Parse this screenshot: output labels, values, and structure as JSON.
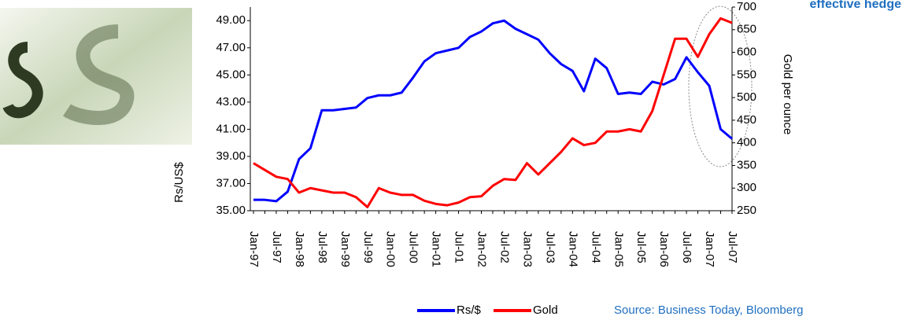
{
  "chart_data": {
    "type": "line",
    "annotation": "effective hedge",
    "ylabel": "Rs/US$",
    "y2label": "Gold per ounce",
    "source": "Source: Business Today, Bloomberg",
    "legend": "bottom",
    "categories": [
      "Jan-97",
      null,
      "Jul-97",
      null,
      "Jan-98",
      null,
      "Jul-98",
      null,
      "Jan-99",
      null,
      "Jul-99",
      null,
      "Jan-00",
      null,
      "Jul-00",
      null,
      "Jan-01",
      null,
      "Jul-01",
      null,
      "Jan-02",
      null,
      "Jul-02",
      null,
      "Jan-03",
      null,
      "Jul-03",
      null,
      "Jan-04",
      null,
      "Jul-04",
      null,
      "Jan-05",
      null,
      "Jul-05",
      null,
      "Jan-06",
      null,
      "Jul-06",
      null,
      "Jan-07",
      null,
      "Jul-07"
    ],
    "series": [
      {
        "name": "Rs/$",
        "color": "#0000ff",
        "values": [
          35.8,
          35.8,
          35.7,
          36.4,
          38.8,
          39.6,
          42.4,
          42.4,
          42.5,
          42.6,
          43.3,
          43.5,
          43.5,
          43.7,
          44.8,
          46.0,
          46.6,
          46.8,
          47.0,
          47.8,
          48.2,
          48.8,
          49.0,
          48.4,
          48.0,
          47.6,
          46.6,
          45.8,
          45.3,
          43.8,
          46.2,
          45.5,
          43.6,
          43.7,
          43.6,
          44.5,
          44.3,
          44.7,
          46.3,
          45.2,
          44.2,
          41.0,
          40.3
        ]
      },
      {
        "name": "Gold",
        "color": "#ff0000",
        "axis": "y2",
        "values": [
          355,
          340,
          325,
          320,
          290,
          300,
          295,
          290,
          290,
          280,
          258,
          300,
          290,
          285,
          285,
          272,
          265,
          262,
          268,
          280,
          282,
          305,
          320,
          318,
          355,
          330,
          355,
          380,
          410,
          395,
          400,
          425,
          425,
          430,
          425,
          470,
          550,
          630,
          630,
          590,
          640,
          675,
          665
        ]
      }
    ],
    "ylim": [
      35,
      50
    ],
    "yticks": [
      {
        "value": 35,
        "label": "35.00"
      },
      {
        "value": 37,
        "label": "37.00"
      },
      {
        "value": 39,
        "label": "39.00"
      },
      {
        "value": 41,
        "label": "41.00"
      },
      {
        "value": 43,
        "label": "43.00"
      },
      {
        "value": 45,
        "label": "45.00"
      },
      {
        "value": 47,
        "label": "47.00"
      },
      {
        "value": 49,
        "label": "49.00"
      }
    ],
    "y2lim": [
      250,
      700
    ],
    "y2ticks": [
      250,
      300,
      350,
      400,
      450,
      500,
      550,
      600,
      650,
      700
    ]
  }
}
